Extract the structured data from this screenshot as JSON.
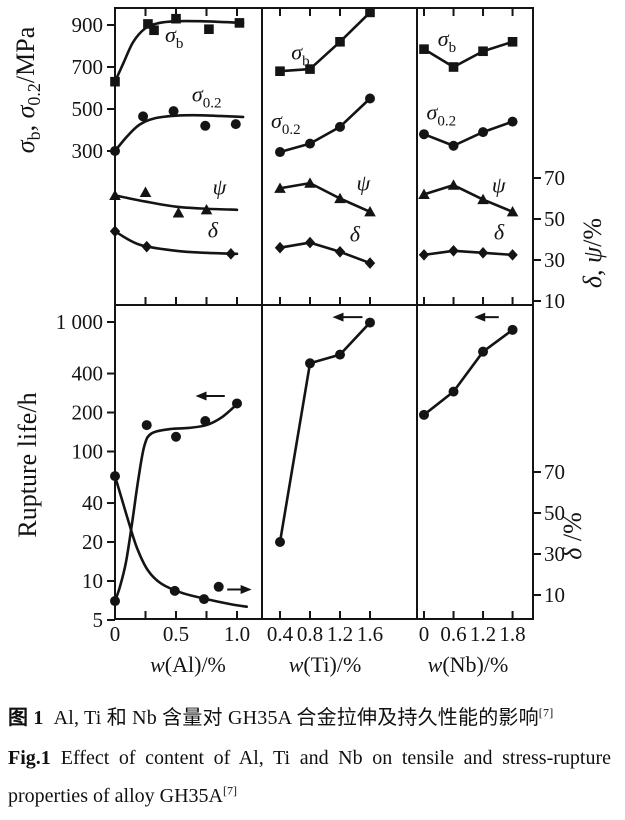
{
  "figure": {
    "caption_zh": {
      "label": "图 1",
      "text": "Al, Ti 和 Nb 含量对 GH35A 合金拉伸及持久性能的影响",
      "ref": "[7]"
    },
    "caption_en": {
      "label": "Fig.1",
      "text": "Effect of content of Al, Ti and Nb on tensile and stress-rupture properties of alloy GH35A",
      "ref": "[7]"
    }
  },
  "chart_data": {
    "type": "line",
    "title": "Fig.1 Effect of content of Al, Ti and Nb on tensile and stress-rupture properties of alloy GH35A[7]",
    "grid": false,
    "ink_color": "#141414",
    "background": "#ffffff",
    "columns": [
      {
        "id": "al",
        "x_title": [
          {
            "t": "w",
            "i": true
          },
          {
            "t": "(Al)/%"
          }
        ],
        "x_ticks": [
          {
            "v": 0,
            "label": "0"
          },
          {
            "v": 0.25
          },
          {
            "v": 0.5,
            "label": "0.5"
          },
          {
            "v": 0.75
          },
          {
            "v": 1.0,
            "label": "1.0"
          }
        ],
        "x_range": [
          0,
          1.2
        ]
      },
      {
        "id": "ti",
        "x_title": [
          {
            "t": "w",
            "i": true
          },
          {
            "t": "(Ti)/%"
          }
        ],
        "x_ticks": [
          {
            "v": 0.4,
            "label": "0.4"
          },
          {
            "v": 0.8,
            "label": "0.8"
          },
          {
            "v": 1.2,
            "label": "1.2"
          },
          {
            "v": 1.6,
            "label": "1.6"
          }
        ],
        "x_range": [
          0.2,
          2.2
        ]
      },
      {
        "id": "nb",
        "x_title": [
          {
            "t": "w",
            "i": true
          },
          {
            "t": "(Nb)/%"
          }
        ],
        "x_ticks": [
          {
            "v": 0,
            "label": "0"
          },
          {
            "v": 0.6,
            "label": "0.6"
          },
          {
            "v": 1.2,
            "label": "1.2"
          },
          {
            "v": 1.8,
            "label": "1.8"
          }
        ],
        "x_range": [
          -0.15,
          2.2
        ]
      }
    ],
    "y_axes": {
      "top_left": {
        "title": [
          {
            "t": "σ",
            "i": true
          },
          {
            "t": "b",
            "sub": true
          },
          {
            "t": ", "
          },
          {
            "t": "σ",
            "i": true
          },
          {
            "t": "0.2",
            "sub": true
          },
          {
            "t": "/MPa"
          }
        ],
        "range": [
          250,
          1000
        ],
        "ticks": [
          {
            "v": 900,
            "label": "900"
          },
          {
            "v": 700,
            "label": "700"
          },
          {
            "v": 500,
            "label": "500"
          },
          {
            "v": 300,
            "label": "300"
          }
        ]
      },
      "top_right": {
        "title": [
          {
            "t": "δ",
            "i": true
          },
          {
            "t": ", "
          },
          {
            "t": "ψ",
            "i": true
          },
          {
            "t": "/%"
          }
        ],
        "range": [
          5,
          75
        ],
        "ticks": [
          {
            "v": 70,
            "label": "70"
          },
          {
            "v": 50,
            "label": "50"
          },
          {
            "v": 30,
            "label": "30"
          },
          {
            "v": 10,
            "label": "10"
          }
        ]
      },
      "bottom_left": {
        "title": [
          {
            "t": "Rupture life/h"
          }
        ],
        "scale": "log",
        "range": [
          5,
          1300
        ],
        "ticks": [
          {
            "v": 1000,
            "label": "1 000"
          },
          {
            "v": 400,
            "label": "400"
          },
          {
            "v": 200,
            "label": "200"
          },
          {
            "v": 100,
            "label": "100"
          },
          {
            "v": 40,
            "label": "40"
          },
          {
            "v": 20,
            "label": "20"
          },
          {
            "v": 10,
            "label": "10"
          },
          {
            "v": 5,
            "label": "5"
          }
        ]
      },
      "bottom_right": {
        "title": [
          {
            "t": "δ",
            "i": true
          },
          {
            "t": " /%"
          }
        ],
        "range": [
          0,
          75
        ],
        "ticks": [
          {
            "v": 70,
            "label": "70"
          },
          {
            "v": 50,
            "label": "50"
          },
          {
            "v": 30,
            "label": "30"
          },
          {
            "v": 10,
            "label": "10"
          }
        ]
      }
    },
    "series": [
      {
        "id": "al-sigma-b",
        "row": 0,
        "col": 0,
        "axis": "L",
        "marker": "square",
        "label": {
          "parts": [
            {
              "t": "σ",
              "i": true
            },
            {
              "t": "b",
              "sub": true
            }
          ],
          "x": 0.41,
          "v": 820
        },
        "points": [
          [
            0,
            630
          ],
          [
            0.27,
            905
          ],
          [
            0.32,
            875
          ],
          [
            0.5,
            930
          ],
          [
            0.77,
            880
          ],
          [
            1.02,
            910
          ]
        ],
        "line": [
          [
            0,
            630
          ],
          [
            0.07,
            720
          ],
          [
            0.15,
            820
          ],
          [
            0.25,
            885
          ],
          [
            0.35,
            908
          ],
          [
            0.5,
            918
          ],
          [
            0.7,
            918
          ],
          [
            1.05,
            910
          ]
        ]
      },
      {
        "id": "al-sigma-0-2",
        "row": 0,
        "col": 0,
        "axis": "L",
        "marker": "circle",
        "label": {
          "parts": [
            {
              "t": "σ",
              "i": true
            },
            {
              "t": "0.2",
              "sub": true
            }
          ],
          "x": 0.63,
          "v": 535
        },
        "points": [
          [
            0,
            300
          ],
          [
            0.23,
            465
          ],
          [
            0.48,
            490
          ],
          [
            0.74,
            420
          ],
          [
            0.99,
            428
          ]
        ],
        "line": [
          [
            0,
            300
          ],
          [
            0.1,
            370
          ],
          [
            0.2,
            425
          ],
          [
            0.32,
            455
          ],
          [
            0.5,
            468
          ],
          [
            0.7,
            470
          ],
          [
            1.05,
            462
          ]
        ]
      },
      {
        "id": "al-psi",
        "row": 0,
        "col": 0,
        "axis": "R",
        "marker": "triangle",
        "label": {
          "parts": [
            {
              "t": "ψ",
              "i": true
            }
          ],
          "x": 0.8,
          "v": 62
        },
        "points": [
          [
            0,
            61.5
          ],
          [
            0.25,
            63
          ],
          [
            0.52,
            53
          ],
          [
            0.75,
            54.5
          ]
        ],
        "line": [
          [
            0,
            61.5
          ],
          [
            0.25,
            58.5
          ],
          [
            0.5,
            56
          ],
          [
            0.75,
            55
          ],
          [
            1.0,
            54.5
          ]
        ]
      },
      {
        "id": "al-delta",
        "row": 0,
        "col": 0,
        "axis": "R",
        "marker": "diamond",
        "label": {
          "parts": [
            {
              "t": "δ",
              "i": true
            }
          ],
          "x": 0.76,
          "v": 41
        },
        "points": [
          [
            0,
            44
          ],
          [
            0.26,
            36.5
          ],
          [
            0.95,
            33
          ]
        ],
        "line": [
          [
            0,
            44
          ],
          [
            0.2,
            37.5
          ],
          [
            0.5,
            34.5
          ],
          [
            0.75,
            33.5
          ],
          [
            1.0,
            33
          ]
        ]
      },
      {
        "id": "ti-sigma-b",
        "row": 0,
        "col": 1,
        "axis": "L",
        "marker": "square",
        "label": {
          "parts": [
            {
              "t": "σ",
              "i": true
            },
            {
              "t": "b",
              "sub": true
            }
          ],
          "x": 0.55,
          "v": 735
        },
        "points": [
          [
            0.4,
            680
          ],
          [
            0.8,
            690
          ],
          [
            1.2,
            820
          ],
          [
            1.6,
            960
          ]
        ]
      },
      {
        "id": "ti-sigma-0-2",
        "row": 0,
        "col": 1,
        "axis": "L",
        "marker": "circle",
        "label": {
          "parts": [
            {
              "t": "σ",
              "i": true
            },
            {
              "t": "0.2",
              "sub": true
            }
          ],
          "x": 0.28,
          "v": 410
        },
        "points": [
          [
            0.4,
            295
          ],
          [
            0.8,
            335
          ],
          [
            1.2,
            415
          ],
          [
            1.6,
            550
          ]
        ]
      },
      {
        "id": "ti-psi",
        "row": 0,
        "col": 1,
        "axis": "R",
        "marker": "triangle",
        "label": {
          "parts": [
            {
              "t": "ψ",
              "i": true
            }
          ],
          "x": 1.42,
          "v": 64
        },
        "points": [
          [
            0.4,
            65
          ],
          [
            0.8,
            67.5
          ],
          [
            1.2,
            60
          ],
          [
            1.6,
            53.5
          ]
        ]
      },
      {
        "id": "ti-delta",
        "row": 0,
        "col": 1,
        "axis": "R",
        "marker": "diamond",
        "label": {
          "parts": [
            {
              "t": "δ",
              "i": true
            }
          ],
          "x": 1.33,
          "v": 39
        },
        "points": [
          [
            0.4,
            36
          ],
          [
            0.8,
            38.5
          ],
          [
            1.2,
            34
          ],
          [
            1.6,
            28.5
          ]
        ]
      },
      {
        "id": "nb-sigma-b",
        "row": 0,
        "col": 2,
        "axis": "L",
        "marker": "square",
        "label": {
          "parts": [
            {
              "t": "σ",
              "i": true
            },
            {
              "t": "b",
              "sub": true
            }
          ],
          "x": 0.28,
          "v": 800
        },
        "points": [
          [
            0,
            785
          ],
          [
            0.6,
            700
          ],
          [
            1.2,
            775
          ],
          [
            1.8,
            820
          ]
        ]
      },
      {
        "id": "nb-sigma-0-2",
        "row": 0,
        "col": 2,
        "axis": "L",
        "marker": "circle",
        "label": {
          "parts": [
            {
              "t": "σ",
              "i": true
            },
            {
              "t": "0.2",
              "sub": true
            }
          ],
          "x": 0.05,
          "v": 450
        },
        "points": [
          [
            0,
            380
          ],
          [
            0.6,
            325
          ],
          [
            1.2,
            390
          ],
          [
            1.8,
            440
          ]
        ]
      },
      {
        "id": "nb-psi",
        "row": 0,
        "col": 2,
        "axis": "R",
        "marker": "triangle",
        "label": {
          "parts": [
            {
              "t": "ψ",
              "i": true
            }
          ],
          "x": 1.38,
          "v": 63
        },
        "points": [
          [
            0,
            62
          ],
          [
            0.6,
            66.5
          ],
          [
            1.2,
            59.5
          ],
          [
            1.8,
            53.5
          ]
        ]
      },
      {
        "id": "nb-delta",
        "row": 0,
        "col": 2,
        "axis": "R",
        "marker": "diamond",
        "label": {
          "parts": [
            {
              "t": "δ",
              "i": true
            }
          ],
          "x": 1.42,
          "v": 40
        },
        "points": [
          [
            0,
            32.5
          ],
          [
            0.6,
            34.5
          ],
          [
            1.2,
            33.5
          ],
          [
            1.8,
            32.5
          ]
        ]
      },
      {
        "id": "al-rupture-life",
        "row": 1,
        "col": 0,
        "axis": "L",
        "marker": "circle",
        "points": [
          [
            0,
            7
          ],
          [
            0.26,
            160
          ],
          [
            0.5,
            130
          ],
          [
            0.74,
            172
          ],
          [
            1.0,
            235
          ]
        ],
        "line": [
          [
            0,
            7
          ],
          [
            0.04,
            9
          ],
          [
            0.09,
            14
          ],
          [
            0.14,
            28
          ],
          [
            0.19,
            60
          ],
          [
            0.24,
            110
          ],
          [
            0.3,
            138
          ],
          [
            0.45,
            149
          ],
          [
            0.6,
            152
          ],
          [
            0.75,
            160
          ],
          [
            0.88,
            185
          ],
          [
            1.0,
            232
          ]
        ]
      },
      {
        "id": "al-delta-stress-rupture",
        "row": 1,
        "col": 0,
        "axis": "R",
        "marker": "circle",
        "points": [
          [
            0,
            68
          ],
          [
            0.49,
            12
          ],
          [
            0.73,
            8
          ],
          [
            0.85,
            14
          ]
        ],
        "line": [
          [
            0,
            68
          ],
          [
            0.05,
            58
          ],
          [
            0.11,
            46
          ],
          [
            0.18,
            33
          ],
          [
            0.27,
            22
          ],
          [
            0.38,
            15.5
          ],
          [
            0.55,
            11
          ],
          [
            0.75,
            8
          ],
          [
            0.95,
            5.5
          ],
          [
            1.08,
            4.3
          ]
        ]
      },
      {
        "id": "ti-rupture-life",
        "row": 1,
        "col": 1,
        "axis": "L",
        "marker": "circle",
        "points": [
          [
            0.4,
            20
          ],
          [
            0.8,
            480
          ],
          [
            1.2,
            560
          ],
          [
            1.6,
            990
          ]
        ]
      },
      {
        "id": "nb-rupture-life",
        "row": 1,
        "col": 2,
        "axis": "L",
        "marker": "circle",
        "points": [
          [
            0,
            192
          ],
          [
            0.6,
            290
          ],
          [
            1.2,
            590
          ],
          [
            1.8,
            870
          ]
        ]
      }
    ],
    "arrows": [
      {
        "row": 1,
        "col": 0,
        "axis": "L",
        "v": 268,
        "x_tail": 0.9,
        "x_head": 0.66
      },
      {
        "row": 1,
        "col": 0,
        "axis": "L",
        "v": 8.6,
        "x_tail": 0.92,
        "x_head": 1.12
      },
      {
        "row": 1,
        "col": 1,
        "axis": "L",
        "v": 1090,
        "x_tail": 1.5,
        "x_head": 1.1
      },
      {
        "row": 1,
        "col": 2,
        "axis": "L",
        "v": 1090,
        "x_tail": 1.52,
        "x_head": 1.02
      }
    ]
  }
}
